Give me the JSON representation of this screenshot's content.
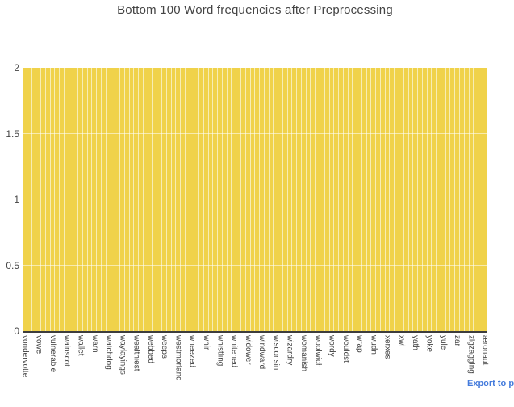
{
  "chart_data": {
    "type": "bar",
    "title": "Bottom 100 Word frequencies after Preprocessing",
    "bar_count": 100,
    "uniform_value": 2,
    "ylim": [
      0,
      2
    ],
    "yticks": [
      0,
      0.5,
      1,
      1.5,
      2
    ],
    "grid_values": [
      0.5,
      1,
      1.5
    ],
    "category_tick_step": 3,
    "categories": [
      "vondervotte",
      "vowel",
      "vulnerable",
      "wainscot",
      "wallet",
      "warn",
      "watchdog",
      "waylayings",
      "wealthiest",
      "webbed",
      "weeps",
      "westmorland",
      "wheezed",
      "whir",
      "whistling",
      "whitened",
      "widower",
      "windward",
      "wisconsin",
      "wizardry",
      "womanish",
      "woolwich",
      "wordy",
      "wouldst",
      "wrap",
      "wudn",
      "xerxes",
      "xwl",
      "yath",
      "yoke",
      "yule",
      "zar",
      "zigzagging",
      "æronaut"
    ],
    "xlabel": "",
    "ylabel": "",
    "legend_position": "none",
    "grid": true,
    "bar_color": "#F0D24A",
    "bar_gap_color": "#F7EDB4",
    "axis_color": "#3d3d3d",
    "text_color": "#444444",
    "link_color": "#447bdc"
  },
  "footer": {
    "export_link_label": "Export to p"
  }
}
